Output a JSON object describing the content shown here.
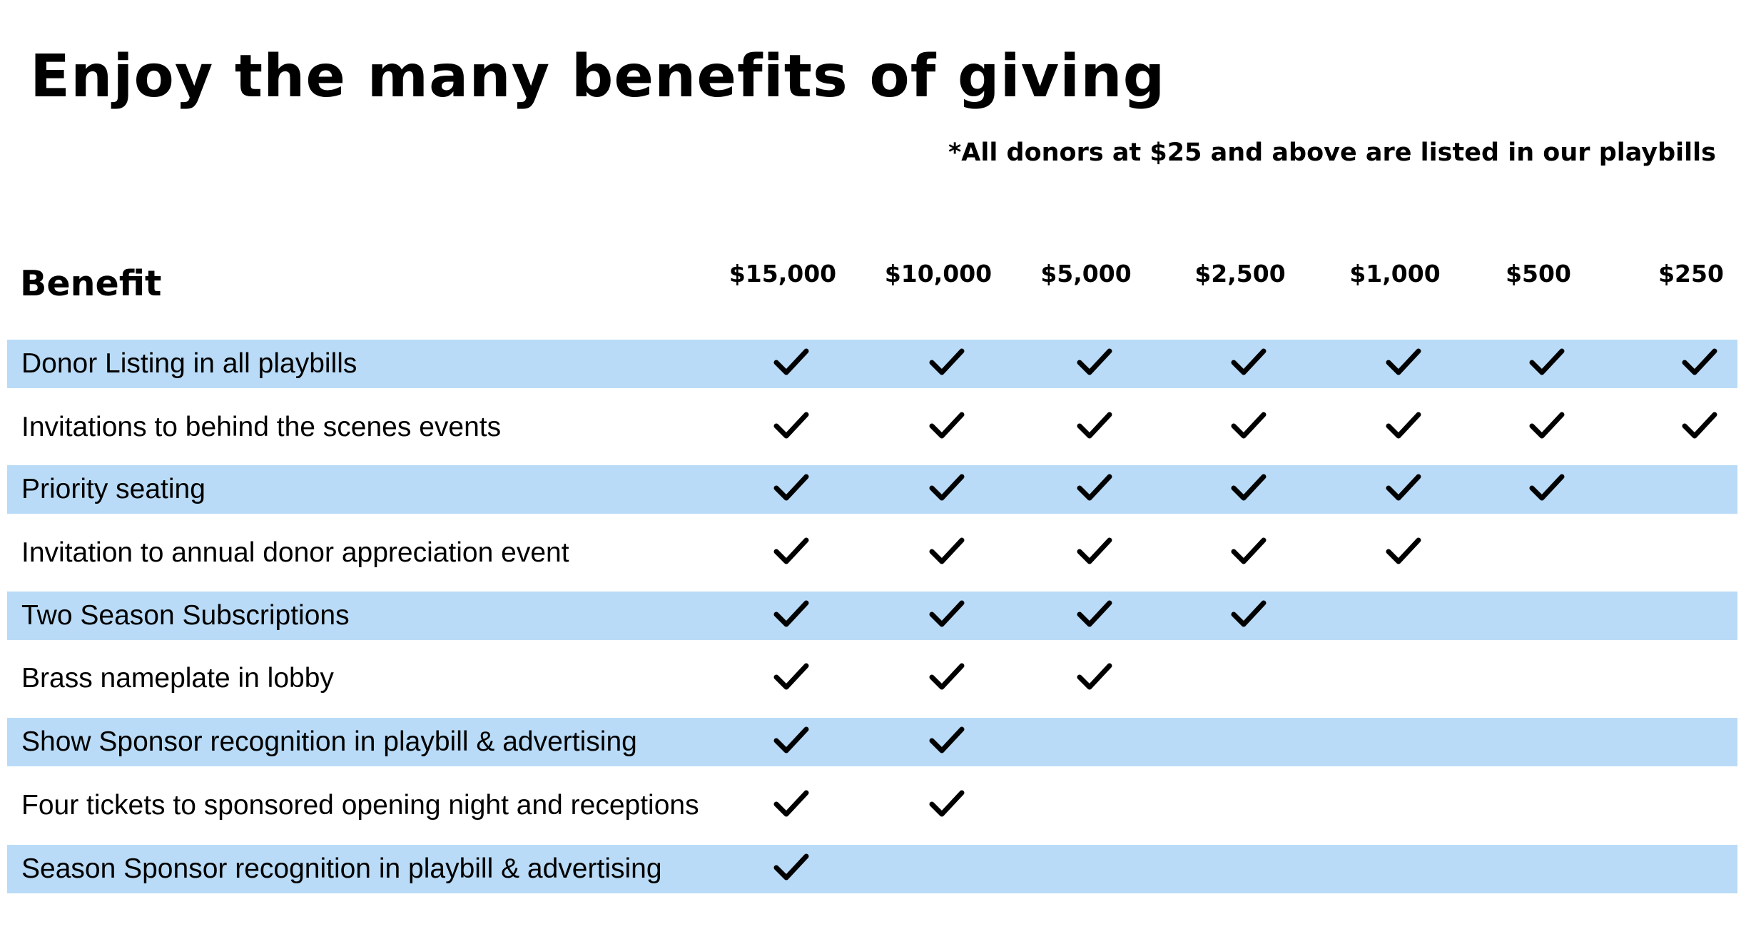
{
  "title": "Enjoy the many benefits of giving",
  "note": "*All donors at $25 and above are listed in our playbills",
  "table": {
    "header_label": "Benefit",
    "tiers": [
      "$15,000",
      "$10,000",
      "$5,000",
      "$2,500",
      "$1,000",
      "$500",
      "$250"
    ],
    "check_icon": "checkmark-icon",
    "colors": {
      "shaded_row": "#b9dbf7",
      "check": "#000000"
    },
    "rows": [
      {
        "label": "Donor Listing in all playbills",
        "checks": [
          true,
          true,
          true,
          true,
          true,
          true,
          true
        ]
      },
      {
        "label": "Invitations to behind the scenes events",
        "checks": [
          true,
          true,
          true,
          true,
          true,
          true,
          true
        ]
      },
      {
        "label": "Priority seating",
        "checks": [
          true,
          true,
          true,
          true,
          true,
          true,
          false
        ]
      },
      {
        "label": "Invitation to annual donor appreciation event",
        "checks": [
          true,
          true,
          true,
          true,
          true,
          false,
          false
        ]
      },
      {
        "label": "Two Season Subscriptions",
        "checks": [
          true,
          true,
          true,
          true,
          false,
          false,
          false
        ]
      },
      {
        "label": "Brass nameplate in lobby",
        "checks": [
          true,
          true,
          true,
          false,
          false,
          false,
          false
        ]
      },
      {
        "label": "Show Sponsor recognition in playbill & advertising",
        "checks": [
          true,
          true,
          false,
          false,
          false,
          false,
          false
        ]
      },
      {
        "label": "Four tickets to sponsored opening night and receptions",
        "checks": [
          true,
          true,
          false,
          false,
          false,
          false,
          false
        ]
      },
      {
        "label": "Season Sponsor recognition in playbill & advertising",
        "checks": [
          true,
          false,
          false,
          false,
          false,
          false,
          false
        ]
      }
    ]
  }
}
